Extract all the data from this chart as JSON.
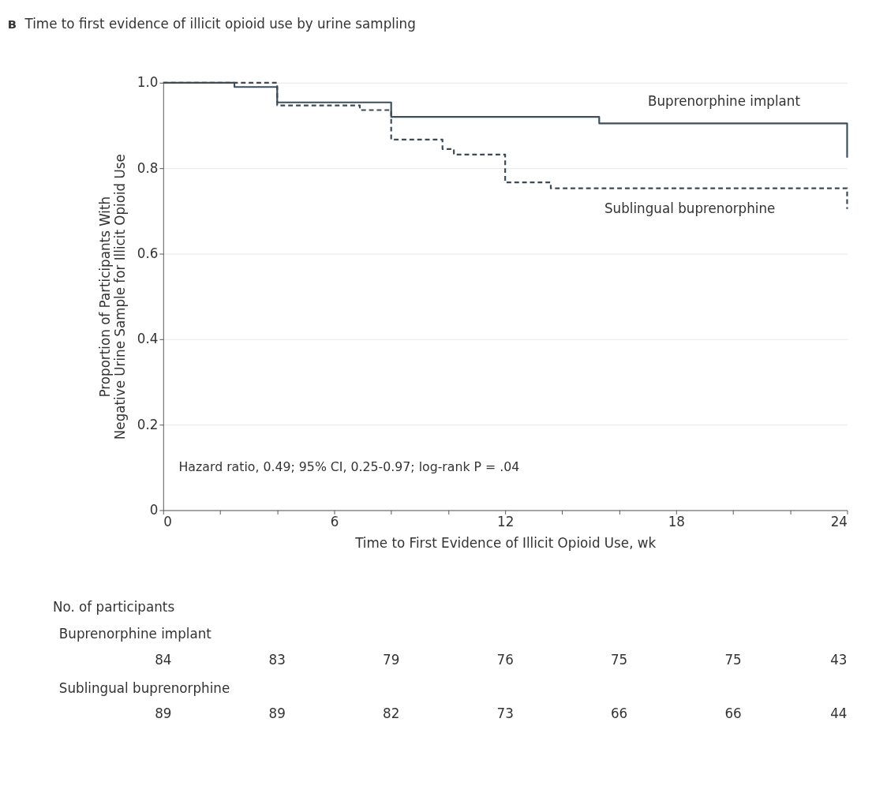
{
  "chart_data": {
    "type": "step",
    "title": "Time to first evidence of illicit opioid use by urine sampling",
    "xlabel": "Time to First Evidence of Illicit Opioid Use, wk",
    "ylabel": "Proportion of Participants With\nNegative Urine Sample for  Illicit Opioid Use",
    "series": [
      {
        "name": "Buprenorphine implant",
        "color": "#3d4f5c",
        "line_style": "solid",
        "x": [
          0,
          2.5,
          4,
          8,
          15.3,
          24
        ],
        "values": [
          1.0,
          0.99,
          0.954,
          0.92,
          0.905,
          0.825
        ]
      },
      {
        "name": "Sublingual buprenorphine",
        "color": "#3d4a55",
        "line_style": "dashed",
        "x": [
          0,
          4,
          6.9,
          8,
          9.8,
          10.2,
          12,
          13.6,
          24
        ],
        "values": [
          1.0,
          0.947,
          0.936,
          0.867,
          0.845,
          0.832,
          0.767,
          0.753,
          0.705
        ]
      }
    ],
    "xlim": [
      0,
      24
    ],
    "xticks": [
      0,
      {
        "value": 2,
        "label": null
      },
      {
        "value": 4,
        "label": null
      },
      6,
      {
        "value": 8,
        "label": null
      },
      {
        "value": 10,
        "label": null
      },
      12,
      {
        "value": 14,
        "label": null
      },
      {
        "value": 16,
        "label": null
      },
      18,
      {
        "value": 20,
        "label": null
      },
      {
        "value": 22,
        "label": null
      },
      24
    ],
    "ylim": [
      0,
      1.0
    ],
    "yticks": [
      0,
      0.2,
      0.4,
      0.6,
      0.8,
      {
        "value": 1.0,
        "label": "1.0"
      }
    ],
    "grid": "y",
    "annotations": [
      "B",
      "Hazard ratio, 0.49; 95% CI, 0.25-0.97; log-rank P = .04",
      "No. of participants",
      "Buprenorphine implant",
      "84",
      "83",
      "79",
      "76",
      "75",
      "75",
      "43",
      "Sublingual buprenorphine",
      "89",
      "89",
      "82",
      "73",
      "66",
      "66",
      "44"
    ]
  }
}
